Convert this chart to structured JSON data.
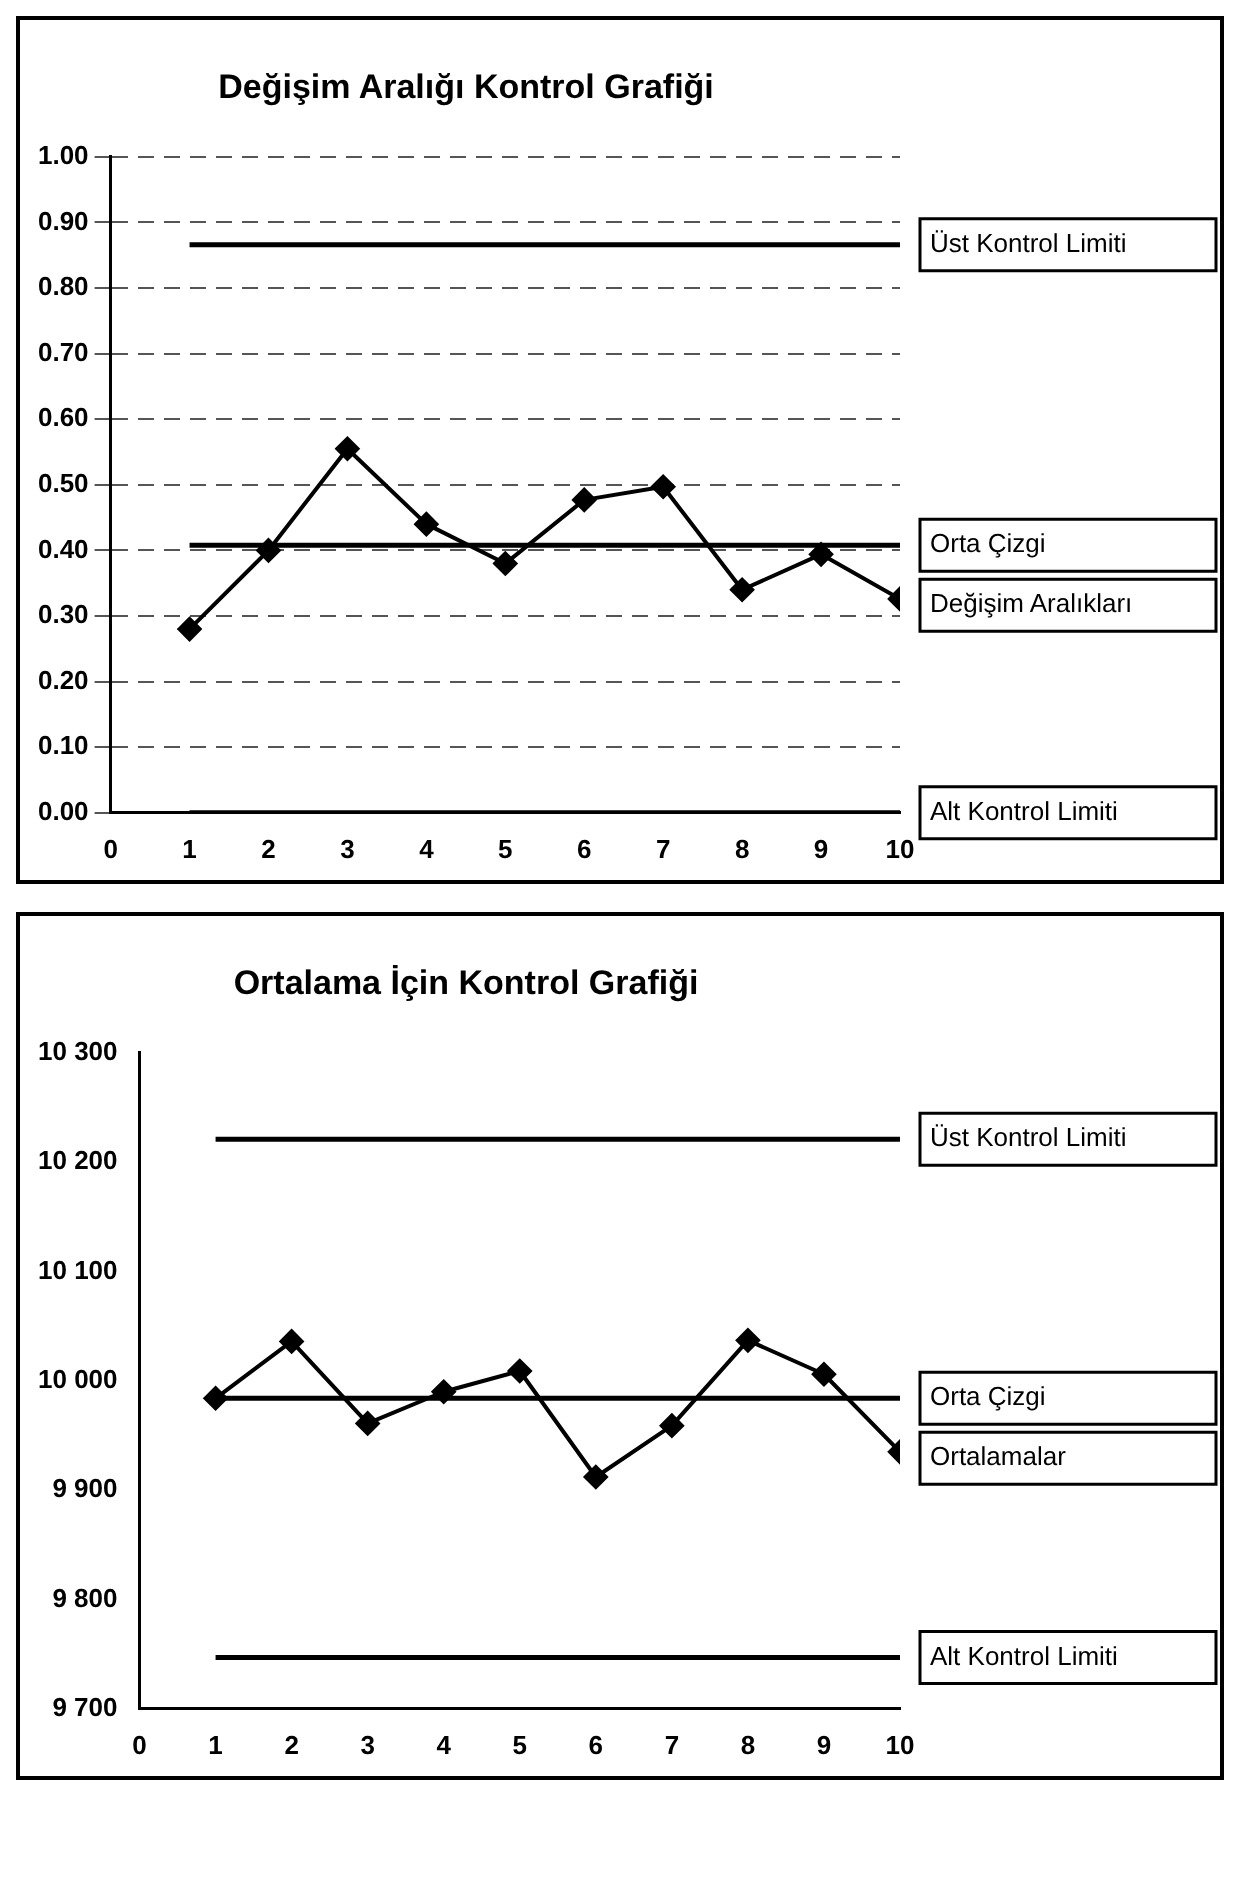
{
  "chart_data": [
    {
      "type": "line",
      "title": "Değişim Aralığı Kontrol Grafiği",
      "x": [
        1,
        2,
        3,
        4,
        5,
        6,
        7,
        8,
        9,
        10
      ],
      "xlim": [
        0,
        10
      ],
      "xticks": [
        0,
        1,
        2,
        3,
        4,
        5,
        6,
        7,
        8,
        9,
        10
      ],
      "ylim": [
        0,
        1
      ],
      "yticks": [
        {
          "value": 0,
          "label": "0.00"
        },
        {
          "value": 0.1,
          "label": "0.10"
        },
        {
          "value": 0.2,
          "label": "0.20"
        },
        {
          "value": 0.3,
          "label": "0.30"
        },
        {
          "value": 0.4,
          "label": "0.40"
        },
        {
          "value": 0.5,
          "label": "0.50"
        },
        {
          "value": 0.6,
          "label": "0.60"
        },
        {
          "value": 0.7,
          "label": "0.70"
        },
        {
          "value": 0.8,
          "label": "0.80"
        },
        {
          "value": 0.9,
          "label": "0.90"
        },
        {
          "value": 1,
          "label": "1.00"
        }
      ],
      "grid": "y",
      "series": [
        {
          "name": "Üst Kontrol Limiti",
          "color": "#000000",
          "marker": "none",
          "values": [
            0.866,
            0.866,
            0.866,
            0.866,
            0.866,
            0.866,
            0.866,
            0.866,
            0.866,
            0.866
          ]
        },
        {
          "name": "Orta Çizgi",
          "color": "#000000",
          "marker": "none",
          "values": [
            0.408,
            0.408,
            0.408,
            0.408,
            0.408,
            0.408,
            0.408,
            0.408,
            0.408,
            0.408
          ]
        },
        {
          "name": "Değişim Aralıkları",
          "color": "#000000",
          "marker": "diamond",
          "values": [
            0.28,
            0.4,
            0.555,
            0.44,
            0.38,
            0.477,
            0.497,
            0.34,
            0.394,
            0.326
          ]
        },
        {
          "name": "Alt Kontrol Limiti",
          "color": "#000000",
          "marker": "none",
          "values": [
            0,
            0,
            0,
            0,
            0,
            0,
            0,
            0,
            0,
            0
          ]
        }
      ]
    },
    {
      "type": "line",
      "title": "Ortalama İçin Kontrol Grafiği",
      "x": [
        1,
        2,
        3,
        4,
        5,
        6,
        7,
        8,
        9,
        10
      ],
      "xlim": [
        0,
        10
      ],
      "xticks": [
        0,
        1,
        2,
        3,
        4,
        5,
        6,
        7,
        8,
        9,
        10
      ],
      "ylim": [
        9700,
        10300
      ],
      "yticks": [
        {
          "value": 9700,
          "label": "9 700"
        },
        {
          "value": 9800,
          "label": "9 800"
        },
        {
          "value": 9900,
          "label": "9 900"
        },
        {
          "value": 10000,
          "label": "10 000"
        },
        {
          "value": 10100,
          "label": "10 100"
        },
        {
          "value": 10200,
          "label": "10 200"
        },
        {
          "value": 10300,
          "label": "10 300"
        }
      ],
      "series": [
        {
          "name": "Üst Kontrol Limiti",
          "color": "#000000",
          "marker": "none",
          "values": [
            10221,
            10221,
            10221,
            10221,
            10221,
            10221,
            10221,
            10221,
            10221,
            10221
          ]
        },
        {
          "name": "Orta Çizgi",
          "color": "#000000",
          "marker": "none",
          "values": [
            9984,
            9984,
            9984,
            9984,
            9984,
            9984,
            9984,
            9984,
            9984,
            9984
          ]
        },
        {
          "name": "Ortalamalar",
          "color": "#000000",
          "marker": "diamond",
          "values": [
            9984,
            10036,
            9961,
            9990,
            10009,
            9912,
            9959,
            10037,
            10006,
            9935
          ]
        },
        {
          "name": "Alt Kontrol Limiti",
          "color": "#000000",
          "marker": "none",
          "values": [
            9747,
            9747,
            9747,
            9747,
            9747,
            9747,
            9747,
            9747,
            9747,
            9747
          ]
        }
      ]
    }
  ]
}
